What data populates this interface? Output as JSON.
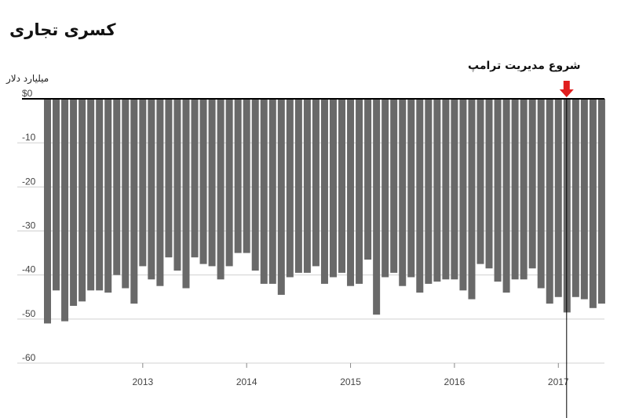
{
  "chart_data": {
    "type": "bar",
    "title": "کسری تجاری",
    "ylabel": "میلیارد دلار",
    "ylim": [
      -60,
      0
    ],
    "y_ticks": [
      {
        "value": 0,
        "label": "$0"
      },
      {
        "value": -10,
        "label": "-10"
      },
      {
        "value": -20,
        "label": "-20"
      },
      {
        "value": -30,
        "label": "-30"
      },
      {
        "value": -40,
        "label": "-40"
      },
      {
        "value": -50,
        "label": "-50"
      },
      {
        "value": -60,
        "label": "-60"
      }
    ],
    "x_ticks": [
      {
        "index": 11,
        "label": "2013"
      },
      {
        "index": 23,
        "label": "2014"
      },
      {
        "index": 35,
        "label": "2015"
      },
      {
        "index": 47,
        "label": "2016"
      },
      {
        "index": 59,
        "label": "2017"
      }
    ],
    "start": "2012-01",
    "values": [
      -51,
      -43.5,
      -50.5,
      -47,
      -46,
      -43.5,
      -43.5,
      -44,
      -40,
      -43,
      -46.5,
      -38,
      -41,
      -42.5,
      -36,
      -39,
      -43,
      -36,
      -37.5,
      -38,
      -41,
      -38,
      -35,
      -35,
      -39,
      -42,
      -42,
      -44.5,
      -40.5,
      -39.5,
      -39.5,
      -38,
      -42,
      -40.5,
      -39.5,
      -42.5,
      -42,
      -36.5,
      -49,
      -40.5,
      -39.5,
      -42.5,
      -40.5,
      -44,
      -42,
      -41.5,
      -41,
      -41,
      -43.5,
      -45.5,
      -37.5,
      -38.5,
      -41.5,
      -44,
      -41,
      -41,
      -38.5,
      -43,
      -46.5,
      -45,
      -48.5,
      -45,
      -45.5,
      -47.5,
      -46.5
    ],
    "grid": true,
    "bar_color": "#696969",
    "annotation": {
      "text": "شروع مدیریت ترامپ",
      "index": 60,
      "arrow_color": "#e01e1e"
    }
  }
}
